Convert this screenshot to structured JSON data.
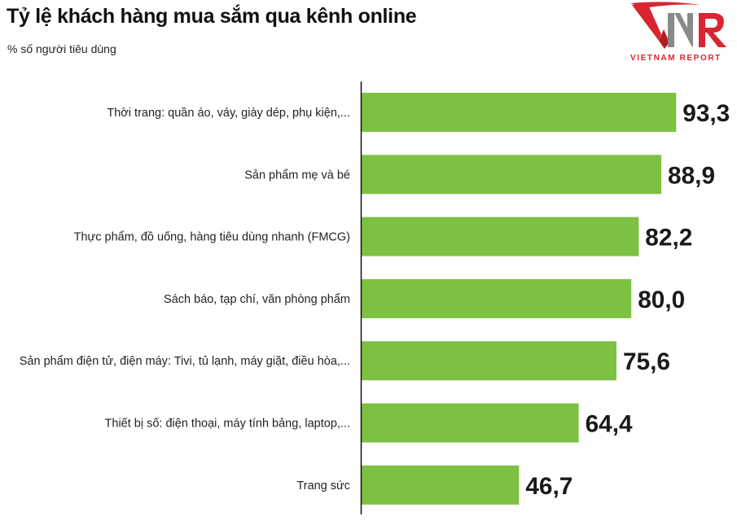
{
  "header": {
    "title": "Tỷ lệ khách hàng mua sắm qua kênh online",
    "subtitle": "% số người tiêu dùng"
  },
  "logo": {
    "mark": "VNR",
    "text": "VIETNAM REPORT",
    "colors": {
      "primary": "#d7262f",
      "secondary": "#8a8a8a"
    }
  },
  "colors": {
    "bar": "#7cc142",
    "axis": "#111111",
    "text": "#222222"
  },
  "chart_data": {
    "type": "bar",
    "orientation": "horizontal",
    "title": "Tỷ lệ khách hàng mua sắm qua kênh online",
    "subtitle": "% số người tiêu dùng",
    "categories": [
      "Thời trang: quần áo, váy, giày dép, phụ kiện,...",
      "Sản phẩm mẹ và bé",
      "Thực phẩm, đồ uống, hàng tiêu dùng nhanh (FMCG)",
      "Sách báo, tạp chí, văn phòng phẩm",
      "Sản phẩm điện tử, điện máy: Tivi, tủ lạnh, máy giặt, điều hòa,...",
      "Thiết bị số: điện thoại, máy tính bảng, laptop,...",
      "Trang sức"
    ],
    "values": [
      93.3,
      88.9,
      82.2,
      80.0,
      75.6,
      64.4,
      46.7
    ],
    "value_labels": [
      "93,3",
      "88,9",
      "82,2",
      "80,0",
      "75,6",
      "64,4",
      "46,7"
    ],
    "xlim": [
      0,
      100
    ],
    "grid": false,
    "legend": "none"
  }
}
